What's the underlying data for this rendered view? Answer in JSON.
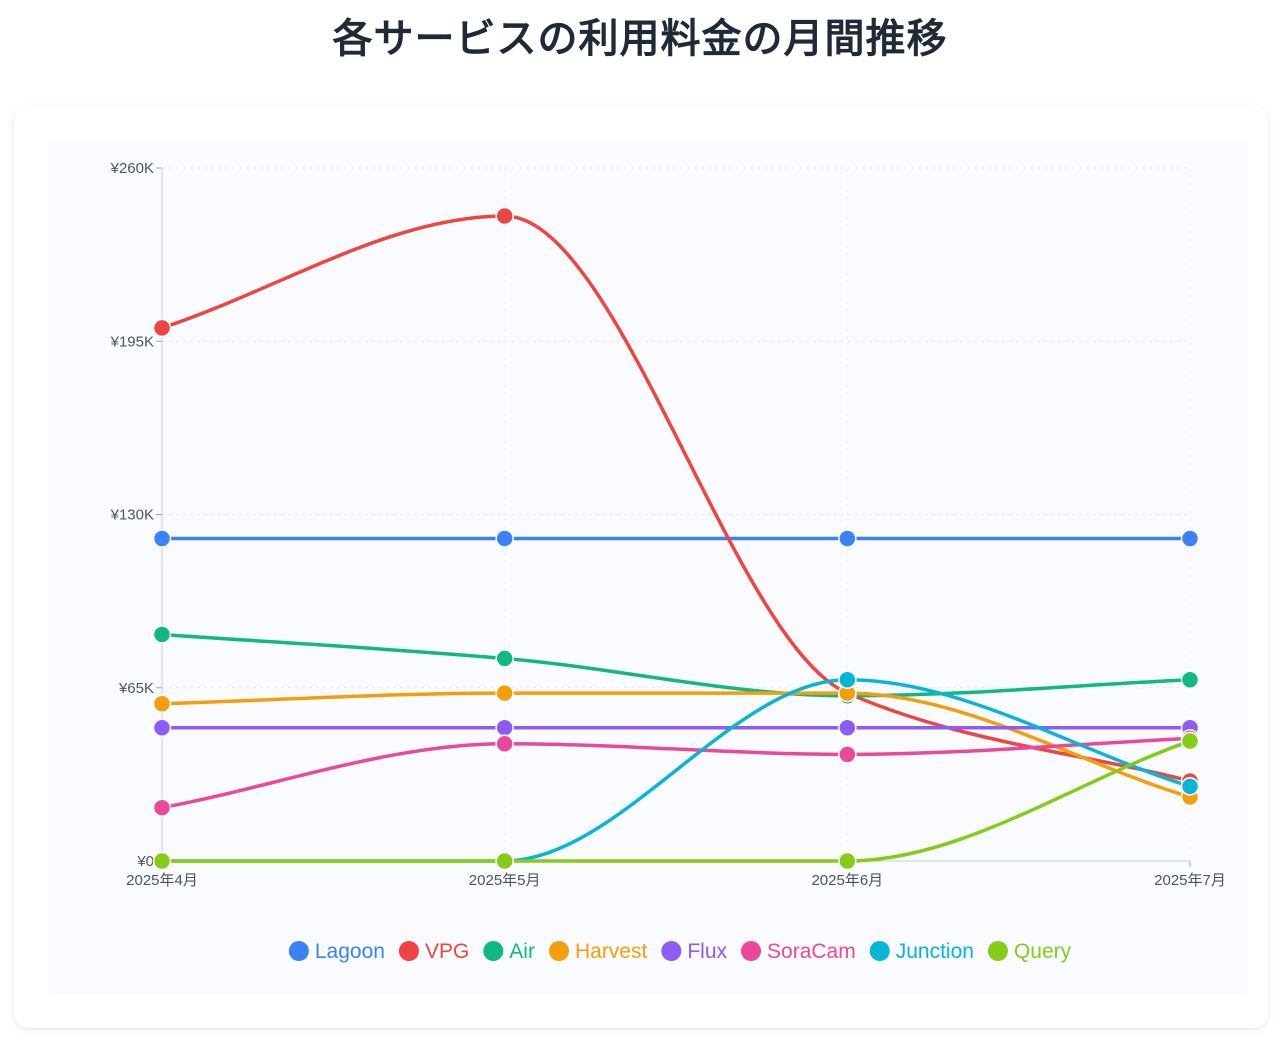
{
  "title": "各サービスの利用料金の月間推移",
  "chart_data": {
    "type": "line",
    "title": "各サービスの利用料金の月間推移",
    "categories": [
      "2025年4月",
      "2025年5月",
      "2025年6月",
      "2025年7月"
    ],
    "ylim": [
      0,
      260000
    ],
    "yticks": [
      0,
      65000,
      130000,
      195000,
      260000
    ],
    "ytick_labels": [
      "¥0",
      "¥65K",
      "¥130K",
      "¥195K",
      "¥260K"
    ],
    "grid": true,
    "legend_position": "bottom",
    "series": [
      {
        "name": "Lagoon",
        "color": "#3b82f6",
        "values": [
          121000,
          121000,
          121000,
          121000
        ]
      },
      {
        "name": "VPG",
        "color": "#ef4444",
        "values": [
          200000,
          242000,
          63000,
          30000
        ]
      },
      {
        "name": "Air",
        "color": "#10b981",
        "values": [
          85000,
          76000,
          62000,
          68000
        ]
      },
      {
        "name": "Harvest",
        "color": "#f59e0b",
        "values": [
          59000,
          63000,
          63000,
          24000
        ]
      },
      {
        "name": "Flux",
        "color": "#8b5cf6",
        "values": [
          50000,
          50000,
          50000,
          50000
        ]
      },
      {
        "name": "SoraCam",
        "color": "#ec4899",
        "values": [
          20000,
          44000,
          40000,
          46000
        ]
      },
      {
        "name": "Junction",
        "color": "#06b6d4",
        "values": [
          0,
          0,
          68000,
          28000
        ]
      },
      {
        "name": "Query",
        "color": "#84cc16",
        "values": [
          0,
          0,
          0,
          45000
        ]
      }
    ]
  }
}
